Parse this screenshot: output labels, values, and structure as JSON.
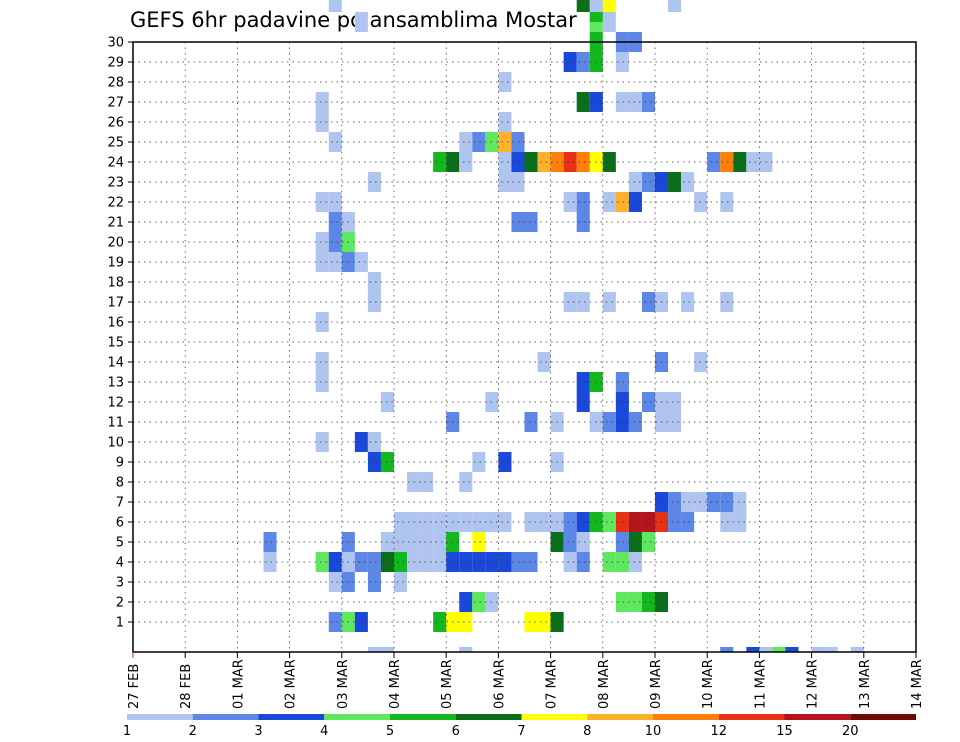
{
  "chart_data": {
    "type": "heatmap",
    "title": "GEFS 6hr padavine po ansamblima Mostar",
    "x_tick_labels": [
      "27 FEB",
      "28 FEB",
      "01 MAR",
      "02 MAR",
      "03 MAR",
      "04 MAR",
      "05 MAR",
      "06 MAR",
      "07 MAR",
      "08 MAR",
      "09 MAR",
      "10 MAR",
      "11 MAR",
      "12 MAR",
      "13 MAR",
      "14 MAR"
    ],
    "y_tick_labels": [
      "1",
      "2",
      "3",
      "4",
      "5",
      "6",
      "7",
      "8",
      "9",
      "10",
      "11",
      "12",
      "13",
      "14",
      "15",
      "16",
      "17",
      "18",
      "19",
      "20",
      "21",
      "22",
      "23",
      "24",
      "25",
      "26",
      "27",
      "28",
      "29",
      "30"
    ],
    "ylim": [
      0,
      30
    ],
    "grid": true,
    "time_step_hours": 6,
    "colorbar": {
      "labels": [
        "1",
        "2",
        "3",
        "4",
        "5",
        "6",
        "7",
        "8",
        "10",
        "12",
        "15",
        "20"
      ],
      "colors": [
        "#b0c4f0",
        "#5c87e6",
        "#1a48d8",
        "#5fe85f",
        "#12b81e",
        "#0a6e1a",
        "#ffff00",
        "#ffb12e",
        "#ff7f0a",
        "#e63214",
        "#b4141e",
        "#6e0a0a"
      ]
    },
    "cells": [
      {
        "m": 18,
        "k": -0.5,
        "c": 0
      },
      {
        "m": 19,
        "k": -0.5,
        "c": 0
      },
      {
        "m": 25,
        "k": -0.5,
        "c": 0
      },
      {
        "m": 45,
        "k": -0.5,
        "c": 1
      },
      {
        "m": 47,
        "k": -0.5,
        "c": 2
      },
      {
        "m": 48,
        "k": -0.5,
        "c": 0
      },
      {
        "m": 49,
        "k": -0.5,
        "c": 3
      },
      {
        "m": 50,
        "k": -0.5,
        "c": 2
      },
      {
        "m": 52,
        "k": -0.5,
        "c": 0
      },
      {
        "m": 53,
        "k": -0.5,
        "c": 0
      },
      {
        "m": 55,
        "k": -0.5,
        "c": 0
      },
      {
        "m": 15,
        "k": 1,
        "c": 1
      },
      {
        "m": 16,
        "k": 1,
        "c": 3
      },
      {
        "m": 17,
        "k": 1,
        "c": 2
      },
      {
        "m": 23,
        "k": 1,
        "c": 4
      },
      {
        "m": 24,
        "k": 1,
        "c": 6
      },
      {
        "m": 25,
        "k": 1,
        "c": 6
      },
      {
        "m": 30,
        "k": 1,
        "c": 6
      },
      {
        "m": 31,
        "k": 1,
        "c": 6
      },
      {
        "m": 32,
        "k": 1,
        "c": 5
      },
      {
        "m": 25,
        "k": 2,
        "c": 2
      },
      {
        "m": 26,
        "k": 2,
        "c": 3
      },
      {
        "m": 27,
        "k": 2,
        "c": 0
      },
      {
        "m": 37,
        "k": 2,
        "c": 3
      },
      {
        "m": 38,
        "k": 2,
        "c": 3
      },
      {
        "m": 39,
        "k": 2,
        "c": 4
      },
      {
        "m": 40,
        "k": 2,
        "c": 5
      },
      {
        "m": 15,
        "k": 3,
        "c": 0
      },
      {
        "m": 16,
        "k": 3,
        "c": 1
      },
      {
        "m": 18,
        "k": 3,
        "c": 1
      },
      {
        "m": 20,
        "k": 3,
        "c": 0
      },
      {
        "m": 10,
        "k": 4,
        "c": 0
      },
      {
        "m": 14,
        "k": 4,
        "c": 3
      },
      {
        "m": 15,
        "k": 4,
        "c": 2
      },
      {
        "m": 16,
        "k": 4,
        "c": 0
      },
      {
        "m": 17,
        "k": 4,
        "c": 1
      },
      {
        "m": 18,
        "k": 4,
        "c": 1
      },
      {
        "m": 19,
        "k": 4,
        "c": 5
      },
      {
        "m": 20,
        "k": 4,
        "c": 4
      },
      {
        "m": 21,
        "k": 4,
        "c": 0
      },
      {
        "m": 22,
        "k": 4,
        "c": 0
      },
      {
        "m": 23,
        "k": 4,
        "c": 0
      },
      {
        "m": 24,
        "k": 4,
        "c": 2
      },
      {
        "m": 25,
        "k": 4,
        "c": 2
      },
      {
        "m": 26,
        "k": 4,
        "c": 2
      },
      {
        "m": 27,
        "k": 4,
        "c": 2
      },
      {
        "m": 28,
        "k": 4,
        "c": 2
      },
      {
        "m": 29,
        "k": 4,
        "c": 1
      },
      {
        "m": 30,
        "k": 4,
        "c": 1
      },
      {
        "m": 33,
        "k": 4,
        "c": 0
      },
      {
        "m": 34,
        "k": 4,
        "c": 1
      },
      {
        "m": 36,
        "k": 4,
        "c": 3
      },
      {
        "m": 37,
        "k": 4,
        "c": 3
      },
      {
        "m": 38,
        "k": 4,
        "c": 0
      },
      {
        "m": 10,
        "k": 5,
        "c": 1
      },
      {
        "m": 16,
        "k": 5,
        "c": 1
      },
      {
        "m": 19,
        "k": 5,
        "c": 0
      },
      {
        "m": 20,
        "k": 5,
        "c": 0
      },
      {
        "m": 21,
        "k": 5,
        "c": 0
      },
      {
        "m": 22,
        "k": 5,
        "c": 0
      },
      {
        "m": 23,
        "k": 5,
        "c": 0
      },
      {
        "m": 24,
        "k": 5,
        "c": 4
      },
      {
        "m": 26,
        "k": 5,
        "c": 6
      },
      {
        "m": 32,
        "k": 5,
        "c": 5
      },
      {
        "m": 33,
        "k": 5,
        "c": 1
      },
      {
        "m": 34,
        "k": 5,
        "c": 0
      },
      {
        "m": 37,
        "k": 5,
        "c": 1
      },
      {
        "m": 38,
        "k": 5,
        "c": 5
      },
      {
        "m": 39,
        "k": 5,
        "c": 3
      },
      {
        "m": 20,
        "k": 6,
        "c": 0
      },
      {
        "m": 21,
        "k": 6,
        "c": 0
      },
      {
        "m": 22,
        "k": 6,
        "c": 0
      },
      {
        "m": 23,
        "k": 6,
        "c": 0
      },
      {
        "m": 24,
        "k": 6,
        "c": 0
      },
      {
        "m": 25,
        "k": 6,
        "c": 0
      },
      {
        "m": 26,
        "k": 6,
        "c": 0
      },
      {
        "m": 27,
        "k": 6,
        "c": 0
      },
      {
        "m": 28,
        "k": 6,
        "c": 0
      },
      {
        "m": 30,
        "k": 6,
        "c": 0
      },
      {
        "m": 31,
        "k": 6,
        "c": 0
      },
      {
        "m": 32,
        "k": 6,
        "c": 0
      },
      {
        "m": 33,
        "k": 6,
        "c": 1
      },
      {
        "m": 34,
        "k": 6,
        "c": 2
      },
      {
        "m": 35,
        "k": 6,
        "c": 4
      },
      {
        "m": 36,
        "k": 6,
        "c": 3
      },
      {
        "m": 37,
        "k": 6,
        "c": 9
      },
      {
        "m": 38,
        "k": 6,
        "c": 10
      },
      {
        "m": 39,
        "k": 6,
        "c": 10
      },
      {
        "m": 40,
        "k": 6,
        "c": 9
      },
      {
        "m": 41,
        "k": 6,
        "c": 1
      },
      {
        "m": 42,
        "k": 6,
        "c": 1
      },
      {
        "m": 45,
        "k": 6,
        "c": 0
      },
      {
        "m": 46,
        "k": 6,
        "c": 0
      },
      {
        "m": 40,
        "k": 7,
        "c": 2
      },
      {
        "m": 41,
        "k": 7,
        "c": 1
      },
      {
        "m": 42,
        "k": 7,
        "c": 0
      },
      {
        "m": 43,
        "k": 7,
        "c": 0
      },
      {
        "m": 44,
        "k": 7,
        "c": 1
      },
      {
        "m": 45,
        "k": 7,
        "c": 1
      },
      {
        "m": 46,
        "k": 7,
        "c": 0
      },
      {
        "m": 21,
        "k": 8,
        "c": 0
      },
      {
        "m": 22,
        "k": 8,
        "c": 0
      },
      {
        "m": 25,
        "k": 8,
        "c": 0
      },
      {
        "m": 18,
        "k": 9,
        "c": 2
      },
      {
        "m": 19,
        "k": 9,
        "c": 4
      },
      {
        "m": 26,
        "k": 9,
        "c": 0
      },
      {
        "m": 28,
        "k": 9,
        "c": 2
      },
      {
        "m": 32,
        "k": 9,
        "c": 0
      },
      {
        "m": 14,
        "k": 10,
        "c": 0
      },
      {
        "m": 17,
        "k": 10,
        "c": 2
      },
      {
        "m": 18,
        "k": 10,
        "c": 0
      },
      {
        "m": 24,
        "k": 11,
        "c": 1
      },
      {
        "m": 30,
        "k": 11,
        "c": 1
      },
      {
        "m": 32,
        "k": 11,
        "c": 0
      },
      {
        "m": 35,
        "k": 11,
        "c": 0
      },
      {
        "m": 36,
        "k": 11,
        "c": 1
      },
      {
        "m": 37,
        "k": 11,
        "c": 2
      },
      {
        "m": 38,
        "k": 11,
        "c": 1
      },
      {
        "m": 40,
        "k": 11,
        "c": 0
      },
      {
        "m": 41,
        "k": 11,
        "c": 0
      },
      {
        "m": 19,
        "k": 12,
        "c": 0
      },
      {
        "m": 27,
        "k": 12,
        "c": 0
      },
      {
        "m": 34,
        "k": 12,
        "c": 2
      },
      {
        "m": 37,
        "k": 12,
        "c": 2
      },
      {
        "m": 39,
        "k": 12,
        "c": 1
      },
      {
        "m": 40,
        "k": 12,
        "c": 0
      },
      {
        "m": 41,
        "k": 12,
        "c": 0
      },
      {
        "m": 14,
        "k": 13,
        "c": 0
      },
      {
        "m": 34,
        "k": 13,
        "c": 2
      },
      {
        "m": 35,
        "k": 13,
        "c": 4
      },
      {
        "m": 37,
        "k": 13,
        "c": 1
      },
      {
        "m": 14,
        "k": 14,
        "c": 0
      },
      {
        "m": 31,
        "k": 14,
        "c": 0
      },
      {
        "m": 40,
        "k": 14,
        "c": 1
      },
      {
        "m": 43,
        "k": 14,
        "c": 0
      },
      {
        "m": 14,
        "k": 16,
        "c": 0
      },
      {
        "m": 18,
        "k": 17,
        "c": 0
      },
      {
        "m": 33,
        "k": 17,
        "c": 0
      },
      {
        "m": 34,
        "k": 17,
        "c": 0
      },
      {
        "m": 36,
        "k": 17,
        "c": 0
      },
      {
        "m": 39,
        "k": 17,
        "c": 1
      },
      {
        "m": 40,
        "k": 17,
        "c": 0
      },
      {
        "m": 42,
        "k": 17,
        "c": 0
      },
      {
        "m": 45,
        "k": 17,
        "c": 0
      },
      {
        "m": 18,
        "k": 18,
        "c": 0
      },
      {
        "m": 14,
        "k": 19,
        "c": 0
      },
      {
        "m": 15,
        "k": 19,
        "c": 0
      },
      {
        "m": 16,
        "k": 19,
        "c": 1
      },
      {
        "m": 17,
        "k": 19,
        "c": 0
      },
      {
        "m": 14,
        "k": 20,
        "c": 0
      },
      {
        "m": 15,
        "k": 20,
        "c": 1
      },
      {
        "m": 16,
        "k": 20,
        "c": 3
      },
      {
        "m": 15,
        "k": 21,
        "c": 1
      },
      {
        "m": 16,
        "k": 21,
        "c": 0
      },
      {
        "m": 29,
        "k": 21,
        "c": 1
      },
      {
        "m": 30,
        "k": 21,
        "c": 1
      },
      {
        "m": 34,
        "k": 21,
        "c": 1
      },
      {
        "m": 14,
        "k": 22,
        "c": 0
      },
      {
        "m": 15,
        "k": 22,
        "c": 0
      },
      {
        "m": 33,
        "k": 22,
        "c": 0
      },
      {
        "m": 34,
        "k": 22,
        "c": 1
      },
      {
        "m": 36,
        "k": 22,
        "c": 0
      },
      {
        "m": 37,
        "k": 22,
        "c": 7
      },
      {
        "m": 38,
        "k": 22,
        "c": 2
      },
      {
        "m": 43,
        "k": 22,
        "c": 0
      },
      {
        "m": 45,
        "k": 22,
        "c": 0
      },
      {
        "m": 18,
        "k": 23,
        "c": 0
      },
      {
        "m": 28,
        "k": 23,
        "c": 0
      },
      {
        "m": 29,
        "k": 23,
        "c": 0
      },
      {
        "m": 38,
        "k": 23,
        "c": 0
      },
      {
        "m": 39,
        "k": 23,
        "c": 1
      },
      {
        "m": 40,
        "k": 23,
        "c": 2
      },
      {
        "m": 41,
        "k": 23,
        "c": 5
      },
      {
        "m": 42,
        "k": 23,
        "c": 0
      },
      {
        "m": 23,
        "k": 24,
        "c": 4
      },
      {
        "m": 24,
        "k": 24,
        "c": 5
      },
      {
        "m": 25,
        "k": 24,
        "c": 0
      },
      {
        "m": 28,
        "k": 24,
        "c": 0
      },
      {
        "m": 29,
        "k": 24,
        "c": 2
      },
      {
        "m": 30,
        "k": 24,
        "c": 5
      },
      {
        "m": 31,
        "k": 24,
        "c": 7
      },
      {
        "m": 32,
        "k": 24,
        "c": 8
      },
      {
        "m": 33,
        "k": 24,
        "c": 9
      },
      {
        "m": 34,
        "k": 24,
        "c": 8
      },
      {
        "m": 35,
        "k": 24,
        "c": 6
      },
      {
        "m": 36,
        "k": 24,
        "c": 5
      },
      {
        "m": 44,
        "k": 24,
        "c": 1
      },
      {
        "m": 45,
        "k": 24,
        "c": 8
      },
      {
        "m": 46,
        "k": 24,
        "c": 5
      },
      {
        "m": 47,
        "k": 24,
        "c": 0
      },
      {
        "m": 48,
        "k": 24,
        "c": 0
      },
      {
        "m": 15,
        "k": 25,
        "c": 0
      },
      {
        "m": 25,
        "k": 25,
        "c": 0
      },
      {
        "m": 26,
        "k": 25,
        "c": 1
      },
      {
        "m": 27,
        "k": 25,
        "c": 3
      },
      {
        "m": 28,
        "k": 25,
        "c": 7
      },
      {
        "m": 29,
        "k": 25,
        "c": 1
      },
      {
        "m": 14,
        "k": 26,
        "c": 0
      },
      {
        "m": 28,
        "k": 26,
        "c": 0
      },
      {
        "m": 14,
        "k": 27,
        "c": 0
      },
      {
        "m": 34,
        "k": 27,
        "c": 5
      },
      {
        "m": 35,
        "k": 27,
        "c": 2
      },
      {
        "m": 37,
        "k": 27,
        "c": 0
      },
      {
        "m": 38,
        "k": 27,
        "c": 0
      },
      {
        "m": 39,
        "k": 27,
        "c": 1
      },
      {
        "m": 28,
        "k": 28,
        "c": 0
      },
      {
        "m": 33,
        "k": 29,
        "c": 2
      },
      {
        "m": 34,
        "k": 29,
        "c": 1
      },
      {
        "m": 35,
        "k": 29,
        "c": 4
      },
      {
        "m": 37,
        "k": 29,
        "c": 0
      },
      {
        "m": 35,
        "k": 30,
        "c": 4
      },
      {
        "m": 37,
        "k": 30,
        "c": 1
      },
      {
        "m": 38,
        "k": 30,
        "c": 1
      },
      {
        "m": 17,
        "k": 31,
        "c": 0
      },
      {
        "m": 35,
        "k": 31,
        "c": 3
      },
      {
        "m": 36,
        "k": 31,
        "c": 0
      },
      {
        "m": 35,
        "k": 31.5,
        "c": 4
      },
      {
        "m": 15,
        "k": 32,
        "c": 0
      },
      {
        "m": 34,
        "k": 32,
        "c": 5
      },
      {
        "m": 35,
        "k": 32,
        "c": 0
      },
      {
        "m": 36,
        "k": 32,
        "c": 6
      },
      {
        "m": 41,
        "k": 32,
        "c": 0
      },
      {
        "m": 14,
        "k": 33,
        "c": 2
      },
      {
        "m": 15,
        "k": 33,
        "c": 3
      },
      {
        "m": 18,
        "k": 33,
        "c": 0
      },
      {
        "m": 14,
        "k": 34,
        "c": 0
      },
      {
        "m": 44,
        "k": 34,
        "c": 1
      },
      {
        "m": 20,
        "k": 35,
        "c": 0
      },
      {
        "m": 21,
        "k": 35,
        "c": 0
      },
      {
        "m": 40,
        "k": 35,
        "c": 1
      },
      {
        "m": 41,
        "k": 35,
        "c": 1
      }
    ]
  }
}
